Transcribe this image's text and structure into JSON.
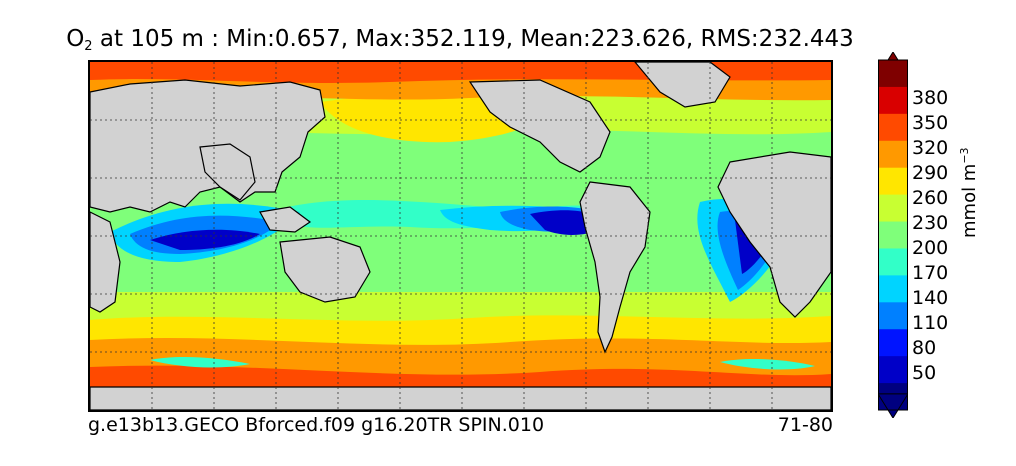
{
  "title": {
    "species": "O",
    "species_sub": "2",
    "text": " at 105 m : Min:0.657, Max:352.119, Mean:223.626, RMS:232.443"
  },
  "footer": {
    "run_name": "g.e13b13.GECO Bforced.f09 g16.20TR SPIN.010",
    "years": "71-80"
  },
  "colorbar": {
    "unit": "mmol m",
    "unit_exp": "−3",
    "ticks": [
      "380",
      "350",
      "320",
      "290",
      "260",
      "230",
      "200",
      "170",
      "140",
      "110",
      "80",
      "50"
    ],
    "colors": [
      "#7f0000",
      "#d90000",
      "#ff4a00",
      "#ff9900",
      "#ffe600",
      "#c8ff32",
      "#7fff7a",
      "#32ffc8",
      "#00d4ff",
      "#0080ff",
      "#0014ff",
      "#0000c8",
      "#000080"
    ]
  },
  "map": {
    "land_color": "#d2d2d2",
    "graticule": "dotted"
  }
}
